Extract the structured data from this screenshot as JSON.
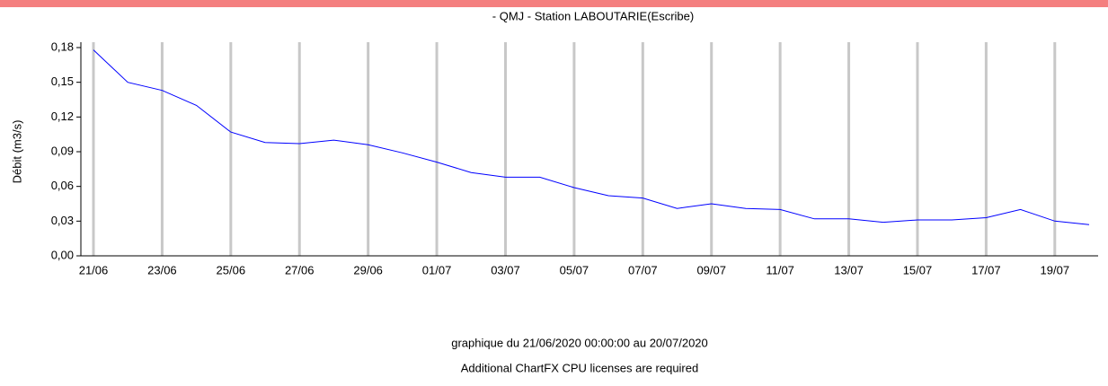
{
  "chart_data": {
    "type": "line",
    "title": "- QMJ - Station LABOUTARIE(Escribe)",
    "y_label": "Débit (m3/s)",
    "subtitle": "graphique du 21/06/2020 00:00:00 au 20/07/2020",
    "note": "Additional ChartFX CPU licenses are required",
    "categories": [
      "21/06",
      null,
      "23/06",
      null,
      "25/06",
      null,
      "27/06",
      null,
      "29/06",
      null,
      "01/07",
      null,
      "03/07",
      null,
      "05/07",
      null,
      "07/07",
      null,
      "09/07",
      null,
      "11/07",
      null,
      "13/07",
      null,
      "15/07",
      null,
      "17/07",
      null,
      "19/07",
      null
    ],
    "series": [
      {
        "name": "QMJ",
        "color": "#0000ff",
        "values": [
          0.178,
          0.15,
          0.143,
          0.13,
          0.107,
          0.098,
          0.097,
          0.1,
          0.096,
          0.089,
          0.081,
          0.072,
          0.068,
          0.068,
          0.059,
          0.052,
          0.05,
          0.041,
          0.045,
          0.041,
          0.04,
          0.032,
          0.032,
          0.029,
          0.031,
          0.031,
          0.033,
          0.04,
          0.03,
          0.027
        ]
      }
    ],
    "ylim": [
      0,
      0.18
    ],
    "yticks": [
      {
        "value": 0,
        "label": "0,00"
      },
      {
        "value": 0.03,
        "label": "0,03"
      },
      {
        "value": 0.06,
        "label": "0,06"
      },
      {
        "value": 0.09,
        "label": "0,09"
      },
      {
        "value": 0.12,
        "label": "0,12"
      },
      {
        "value": 0.15,
        "label": "0,15"
      },
      {
        "value": 0.18,
        "label": "0,18"
      }
    ],
    "grid": "x"
  }
}
